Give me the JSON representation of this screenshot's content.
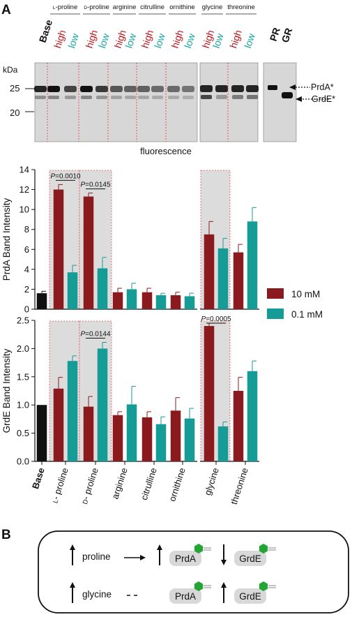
{
  "panels": {
    "a": "A",
    "b": "B"
  },
  "gel": {
    "amino_acids": [
      "L-proline",
      "D-proline",
      "arginine",
      "citrulline",
      "ornithine",
      "glycine",
      "threonine"
    ],
    "base_label": "Base",
    "high_label": "high",
    "low_label": "low",
    "marker_unit": "kDa",
    "markers": [
      "25",
      "20"
    ],
    "control_lanes": [
      "PR",
      "GR"
    ],
    "bands": [
      "PrdA*",
      "GrdE*"
    ],
    "caption": "fluorescence",
    "high_color": "#c0141c",
    "low_color": "#17a3a3"
  },
  "chart_data": [
    {
      "type": "bar",
      "ylabel": "PrdA Band Intensity",
      "ylim": [
        0,
        14
      ],
      "yticks": [
        0,
        2,
        4,
        6,
        8,
        10,
        12,
        14
      ],
      "base": {
        "value": 1.6,
        "error": 0.2
      },
      "categories": [
        "L- proline",
        "D- proline",
        "arginine",
        "citrulline",
        "ornithine",
        "glycine",
        "threonine"
      ],
      "series": [
        {
          "name": "10 mM",
          "color": "#8b1a1e",
          "values": [
            12.0,
            11.3,
            1.7,
            1.7,
            1.4,
            7.5,
            5.7
          ],
          "errors": [
            0.5,
            0.35,
            0.4,
            0.4,
            0.3,
            1.3,
            0.8
          ]
        },
        {
          "name": "0.1 mM",
          "color": "#169c97",
          "values": [
            3.7,
            4.1,
            2.0,
            1.4,
            1.3,
            6.1,
            8.8
          ],
          "errors": [
            0.7,
            1.1,
            0.6,
            0.2,
            0.3,
            1.0,
            1.4
          ]
        }
      ],
      "annotations": [
        {
          "text": "P=0.0010",
          "category": 0
        },
        {
          "text": "P=0.0145",
          "category": 1
        }
      ],
      "highlight": [
        "L- proline",
        "D- proline",
        "glycine"
      ]
    },
    {
      "type": "bar",
      "ylabel": "GrdE Band Intensity",
      "ylim": [
        0,
        2.5
      ],
      "yticks": [
        "0.0",
        "0.5",
        "1.0",
        "1.5",
        "2.0",
        "2.5"
      ],
      "base": {
        "value": 1.0,
        "error": 0.0
      },
      "categories": [
        "L- proline",
        "D- proline",
        "arginine",
        "citrulline",
        "ornithine",
        "glycine",
        "threonine"
      ],
      "series": [
        {
          "name": "10 mM",
          "color": "#8b1a1e",
          "values": [
            1.29,
            0.97,
            0.82,
            0.78,
            0.9,
            2.4,
            1.25
          ],
          "errors": [
            0.2,
            0.18,
            0.06,
            0.1,
            0.23,
            0.05,
            0.24
          ]
        },
        {
          "name": "0.1 mM",
          "color": "#169c97",
          "values": [
            1.78,
            2.0,
            1.01,
            0.66,
            0.76,
            0.62,
            1.6
          ],
          "errors": [
            0.09,
            0.11,
            0.32,
            0.13,
            0.18,
            0.08,
            0.18
          ]
        }
      ],
      "annotations": [
        {
          "text": "P=0.0144",
          "category": 1
        },
        {
          "text": "P=0.0005",
          "category": 5
        }
      ],
      "highlight": [
        "L- proline",
        "D- proline",
        "glycine"
      ]
    }
  ],
  "legend": [
    {
      "label": "10 mM",
      "color": "#8b1a1e"
    },
    {
      "label": "0.1 mM",
      "color": "#169c97"
    }
  ],
  "x_base_label": "Base",
  "scheme": {
    "rows": [
      {
        "substrate": "proline",
        "substrate_arrow": "up",
        "link": "solid",
        "prda_arrow": "up",
        "grde_arrow": "down"
      },
      {
        "substrate": "glycine",
        "substrate_arrow": "up",
        "link": "dashed",
        "prda_arrow": "none",
        "grde_arrow": "up"
      }
    ],
    "proteins": [
      "PrdA",
      "GrdE"
    ],
    "tag_color": "#22a535"
  }
}
